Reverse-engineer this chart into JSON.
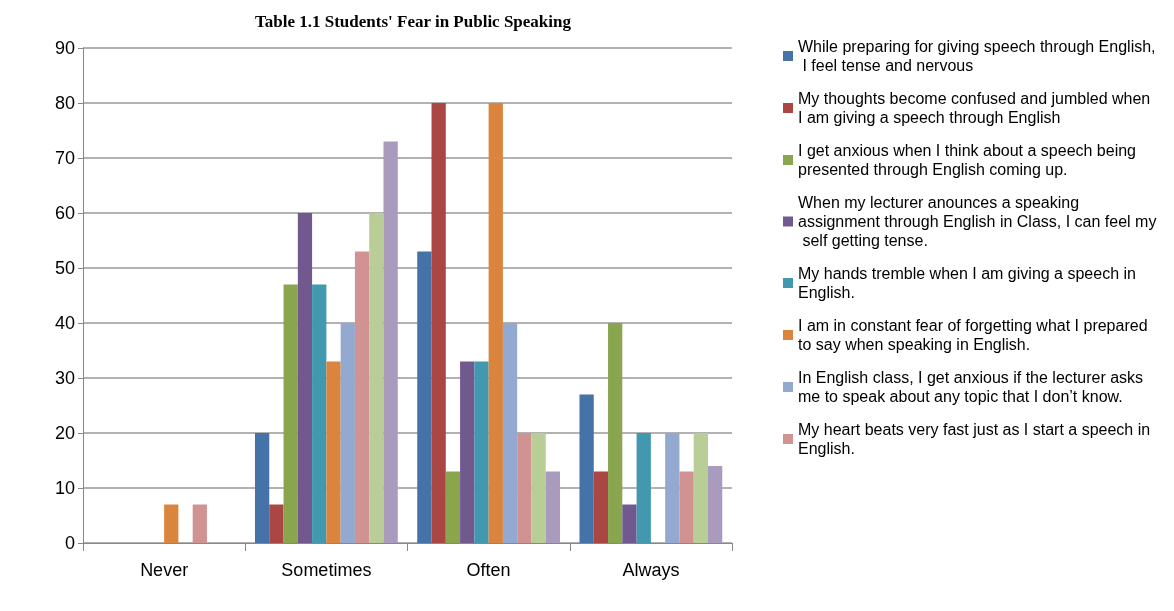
{
  "chart_data": {
    "type": "bar",
    "title": "Table 1.1 Students' Fear in Public Speaking",
    "categories": [
      "Never",
      "Sometimes",
      "Often",
      "Always"
    ],
    "series": [
      {
        "name": "While preparing for giving speech through English, I feel tense and nervous",
        "color": "#4572a7",
        "values": [
          0,
          20,
          53,
          27
        ]
      },
      {
        "name": "My thoughts become confused and jumbled when I am giving a speech through English",
        "color": "#aa4643",
        "values": [
          0,
          7,
          80,
          13
        ]
      },
      {
        "name": "I get anxious when I think about a speech being presented through English coming up.",
        "color": "#89a54e",
        "values": [
          0,
          47,
          13,
          40
        ]
      },
      {
        "name": "When my lecturer anounces a speaking assignment through English in Class, I can feel my self getting tense.",
        "color": "#71588f",
        "values": [
          0,
          60,
          33,
          7
        ]
      },
      {
        "name": "My hands tremble when I am giving a speech in English.",
        "color": "#4198af",
        "values": [
          0,
          47,
          33,
          20
        ]
      },
      {
        "name": "I am in constant fear of forgetting what I prepared to say when speaking in English.",
        "color": "#db843d",
        "values": [
          7,
          33,
          80,
          0
        ]
      },
      {
        "name": "In English class, I get anxious if the lecturer asks me to speak about any topic that I don’t know.",
        "color": "#93a9cf",
        "values": [
          0,
          40,
          40,
          20
        ]
      },
      {
        "name": "My heart beats very fast just as I start a speech in English.",
        "color": "#d19392",
        "values": [
          7,
          53,
          20,
          13
        ]
      },
      {
        "color": "#b9cd96",
        "values": [
          0,
          60,
          20,
          20
        ]
      },
      {
        "color": "#a99bbd",
        "values": [
          0,
          73,
          13,
          14
        ]
      }
    ],
    "ylim": [
      0,
      90
    ],
    "yticks": [
      0,
      10,
      20,
      30,
      40,
      50,
      60,
      70,
      80,
      90
    ],
    "grid": "y",
    "legend": "right"
  }
}
